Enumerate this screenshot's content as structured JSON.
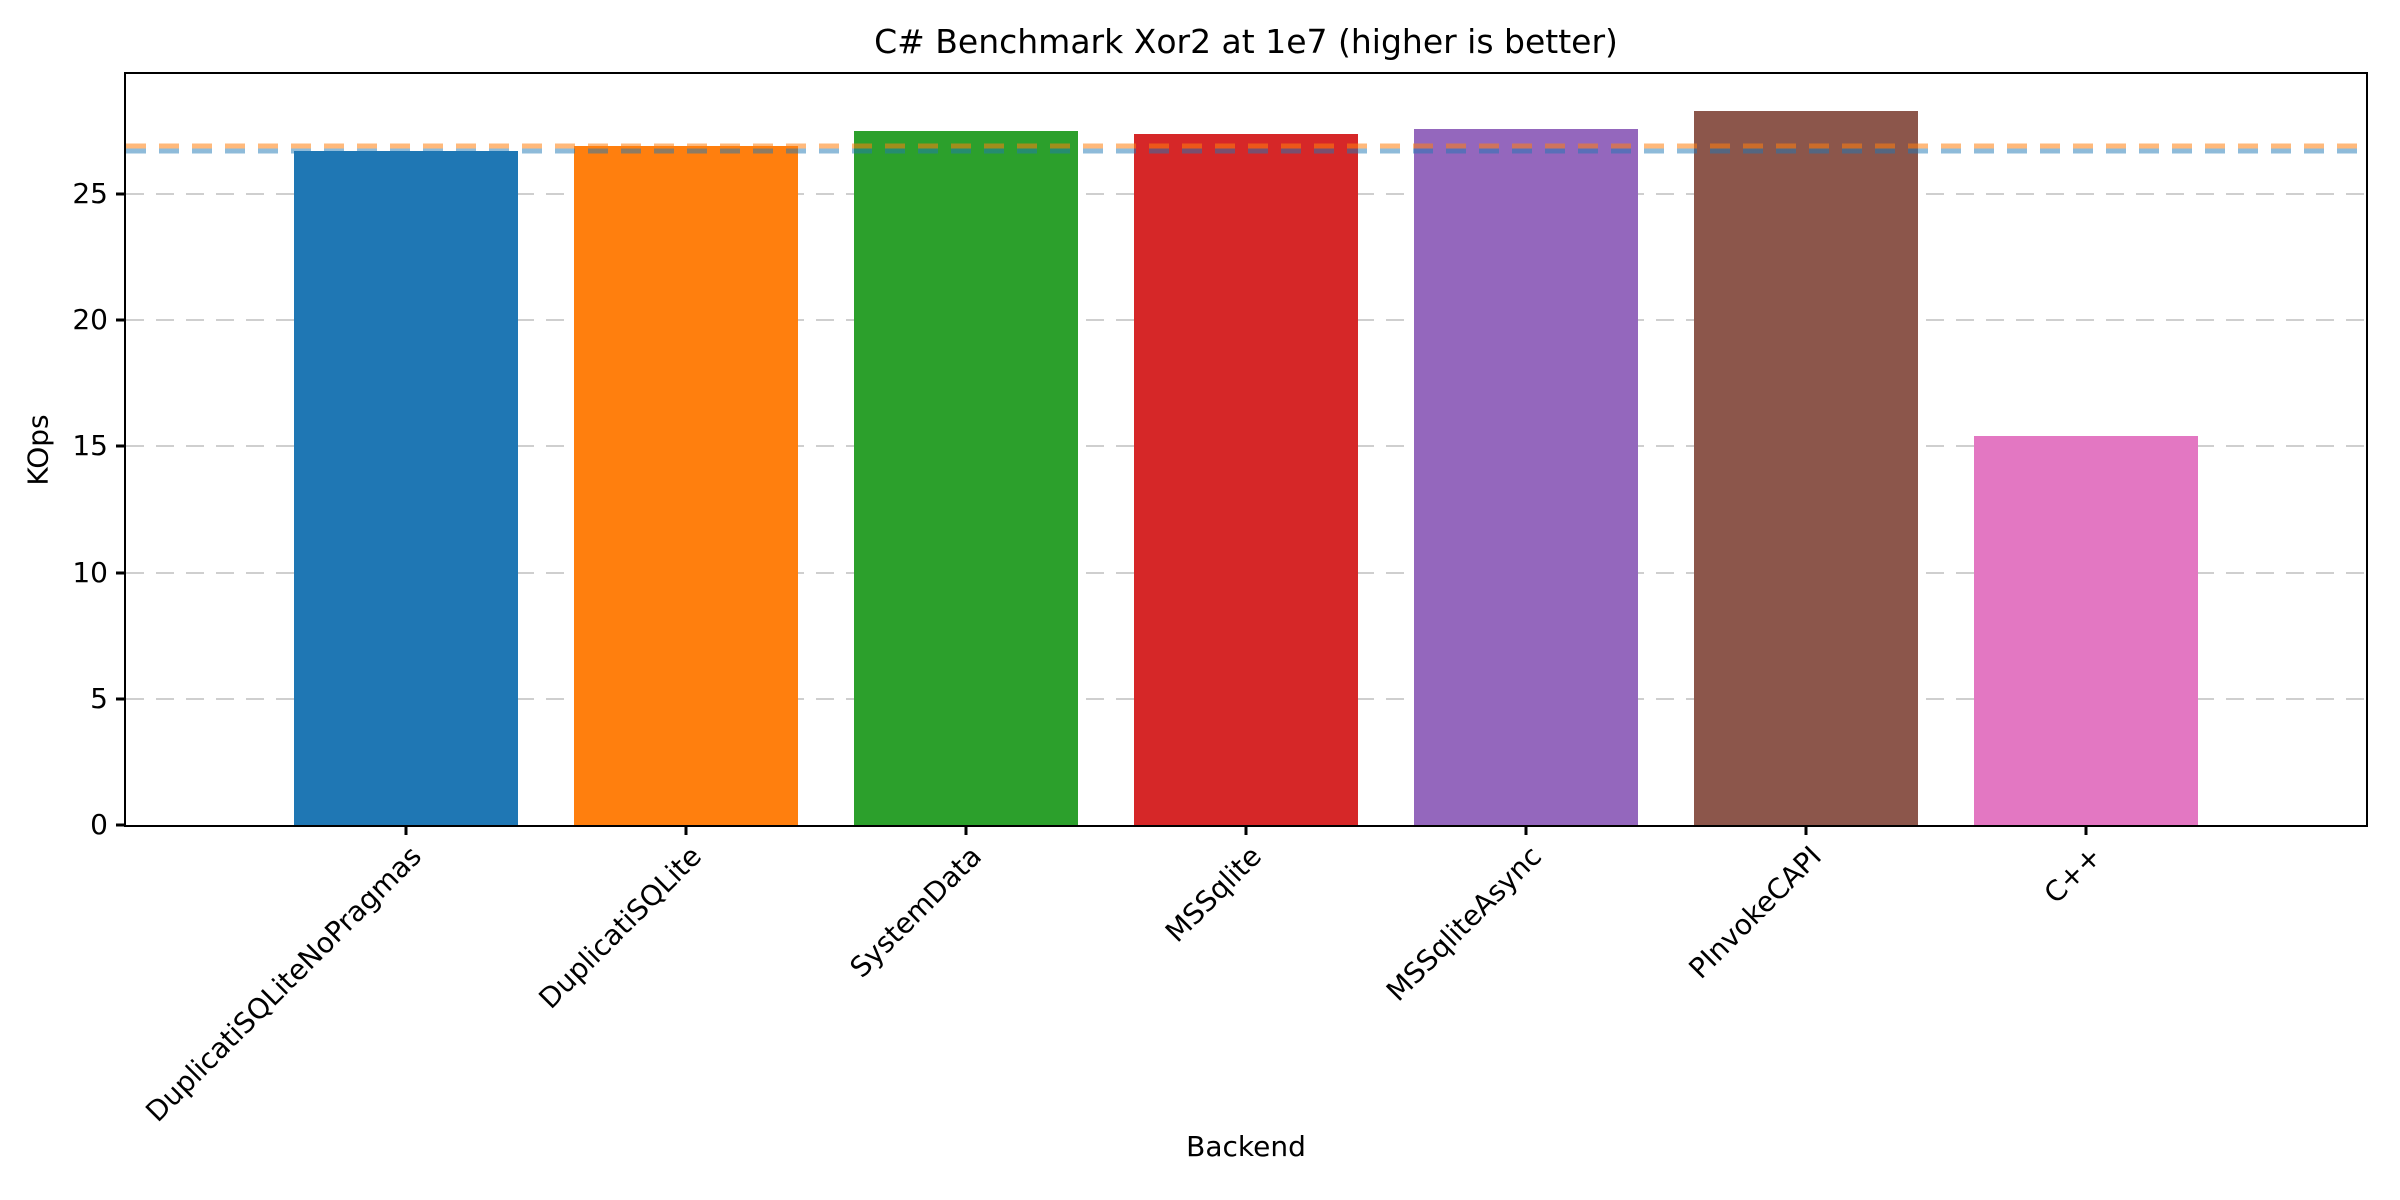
{
  "chart_data": {
    "type": "bar",
    "title": "C# Benchmark Xor2 at 1e7 (higher is better)",
    "xlabel": "Backend",
    "ylabel": "KOps",
    "categories": [
      "DuplicatiSQLiteNoPragmas",
      "DuplicatiSQLite",
      "SystemData",
      "MSSqlite",
      "MSSqliteAsync",
      "PInvokeCAPI",
      "C++"
    ],
    "values": [
      26.7,
      26.9,
      27.5,
      27.4,
      27.6,
      28.3,
      15.4
    ],
    "bar_colors": [
      "#1f77b4",
      "#ff7f0e",
      "#2ca02c",
      "#d62728",
      "#9467bd",
      "#8c564b",
      "#e377c2"
    ],
    "yticks": [
      0,
      5,
      10,
      15,
      20,
      25
    ],
    "ylim": [
      0,
      29.76
    ],
    "grid": "horizontal-dashed",
    "gridline_color": "#cfcfcf",
    "legend": "none",
    "reference_lines": [
      {
        "name": "duplicati-sqlite-baseline",
        "value": 26.9,
        "color": "rgba(255,127,14,0.55)",
        "style": "dashed"
      },
      {
        "name": "duplicati-sqlite-nopragmas-baseline",
        "value": 26.7,
        "color": "rgba(31,119,180,0.50)",
        "style": "dashed"
      }
    ]
  }
}
